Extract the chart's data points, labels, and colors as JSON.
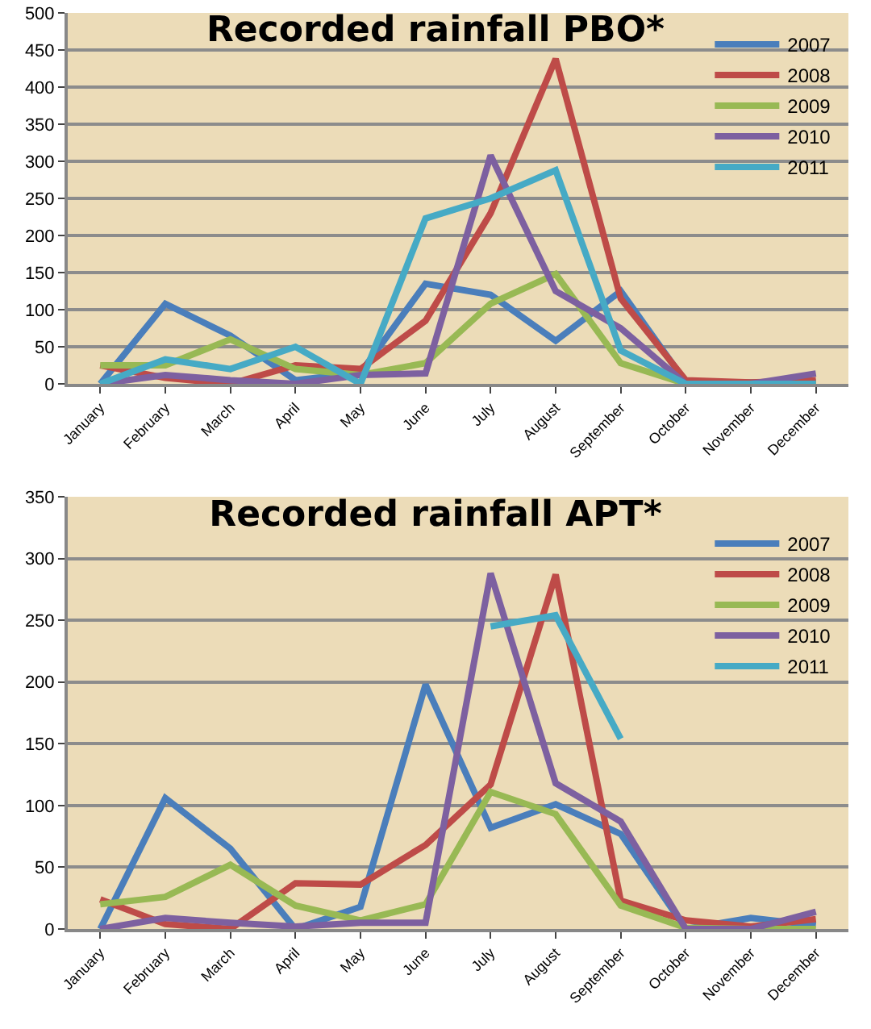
{
  "chart_data": [
    {
      "type": "line",
      "title": "Recorded rainfall PBO*",
      "categories": [
        "January",
        "February",
        "March",
        "April",
        "May",
        "June",
        "July",
        "August",
        "September",
        "October",
        "November",
        "December"
      ],
      "series": [
        {
          "name": "2007",
          "color": "#4a7ebb",
          "values": [
            0,
            108,
            65,
            5,
            15,
            135,
            120,
            58,
            125,
            2,
            2,
            2
          ]
        },
        {
          "name": "2008",
          "color": "#be4b48",
          "values": [
            25,
            8,
            0,
            25,
            20,
            85,
            230,
            438,
            115,
            5,
            2,
            5
          ]
        },
        {
          "name": "2009",
          "color": "#98b954",
          "values": [
            25,
            25,
            60,
            20,
            12,
            28,
            108,
            148,
            28,
            0,
            0,
            0
          ]
        },
        {
          "name": "2010",
          "color": "#7d60a0",
          "values": [
            0,
            12,
            5,
            0,
            12,
            14,
            308,
            125,
            75,
            0,
            0,
            14
          ]
        },
        {
          "name": "2011",
          "color": "#46aac5",
          "values": [
            0,
            33,
            20,
            50,
            0,
            223,
            250,
            288,
            45,
            0,
            0,
            0
          ]
        }
      ],
      "ylim": [
        0,
        500
      ],
      "yticks": [
        0,
        50,
        100,
        150,
        200,
        250,
        300,
        350,
        400,
        450,
        500
      ],
      "grid": "y",
      "legend": "right",
      "marker": "none",
      "line_style": "solid"
    },
    {
      "type": "line",
      "title": "Recorded rainfall APT*",
      "categories": [
        "January",
        "February",
        "March",
        "April",
        "May",
        "June",
        "July",
        "August",
        "September",
        "October",
        "November",
        "December"
      ],
      "series": [
        {
          "name": "2007",
          "color": "#4a7ebb",
          "values": [
            0,
            106,
            65,
            0,
            18,
            198,
            82,
            101,
            77,
            0,
            9,
            3
          ]
        },
        {
          "name": "2008",
          "color": "#be4b48",
          "values": [
            24,
            4,
            0,
            37,
            36,
            68,
            117,
            287,
            23,
            7,
            2,
            8
          ]
        },
        {
          "name": "2009",
          "color": "#98b954",
          "values": [
            20,
            26,
            52,
            19,
            7,
            20,
            111,
            93,
            19,
            1,
            0,
            0
          ]
        },
        {
          "name": "2010",
          "color": "#7d60a0",
          "values": [
            0,
            9,
            5,
            2,
            5,
            5,
            288,
            118,
            87,
            0,
            0,
            14
          ]
        },
        {
          "name": "2011",
          "color": "#46aac5",
          "values": [
            null,
            null,
            null,
            null,
            null,
            null,
            245,
            254,
            154,
            null,
            null,
            null
          ]
        }
      ],
      "ylim": [
        0,
        350
      ],
      "yticks": [
        0,
        50,
        100,
        150,
        200,
        250,
        300,
        350
      ],
      "grid": "y",
      "legend": "right",
      "marker": "none",
      "line_style": "solid"
    }
  ]
}
